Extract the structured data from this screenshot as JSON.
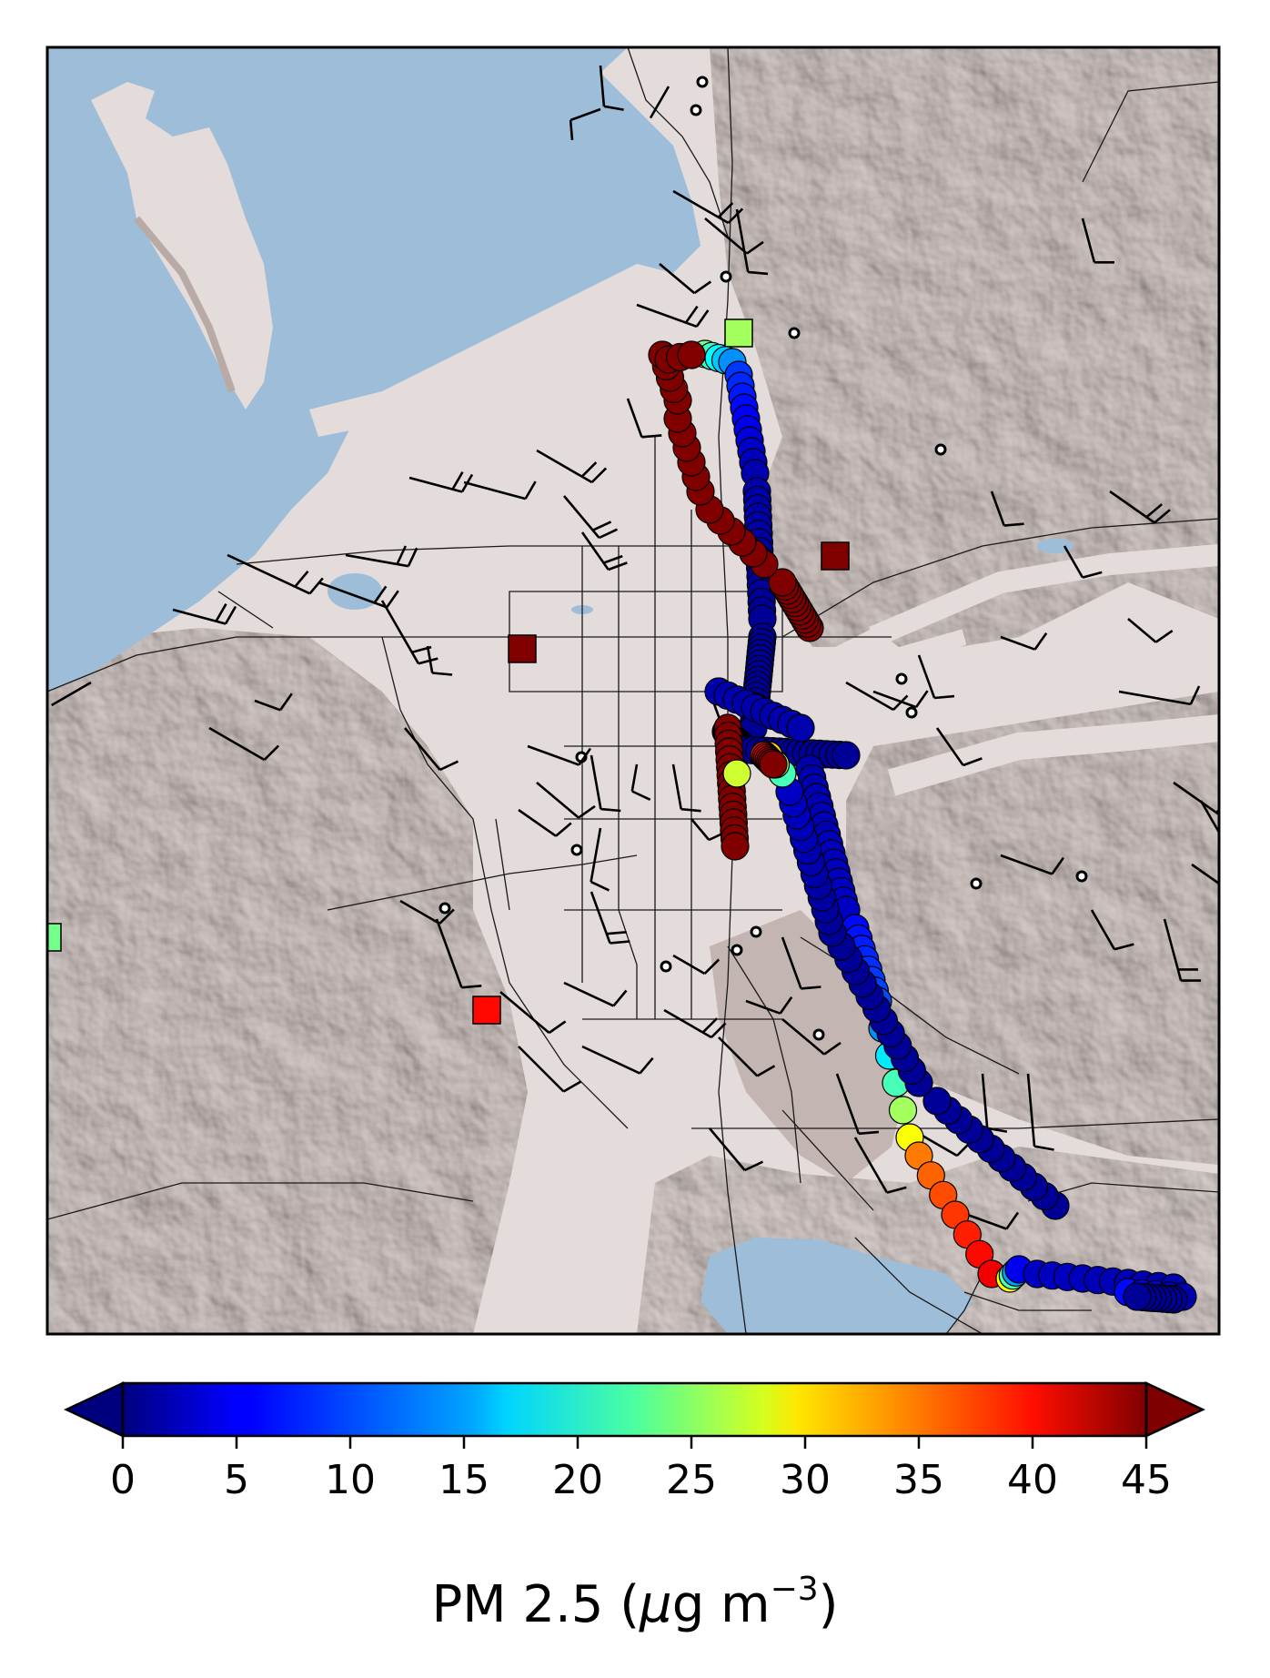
{
  "figure": {
    "colorbar": {
      "label_prefix": "PM 2.5 (",
      "label_mu": "μ",
      "label_unit": "g m",
      "label_exp": "−3",
      "label_suffix": ")",
      "ticks": [
        "0",
        "5",
        "10",
        "15",
        "20",
        "25",
        "30",
        "35",
        "40",
        "45"
      ],
      "min": 0,
      "max": 45,
      "extend": "both",
      "colormap": "jet"
    }
  },
  "colors": {
    "water": "#9dbdd9",
    "land": "#e3dcdb",
    "terrain": "#b9aaa6",
    "roads": "#1a1a1a",
    "frame": "#000000"
  },
  "chart_data": {
    "type": "scatter",
    "description_layers": [
      "mobile transect PM2.5 points",
      "fixed site PM2.5 squares",
      "wind barbs",
      "calm wind circles"
    ],
    "transect_segments": [
      {
        "pm25_start": 22,
        "pm25_end": 12,
        "n": 5
      },
      {
        "pm25_start": 8,
        "pm25_end": 2,
        "n": 10
      },
      {
        "pm25_start": 2,
        "pm25_end": 1,
        "n": 16
      },
      {
        "pm25_start": 1,
        "pm25_end": 1,
        "n": 18
      },
      {
        "pm25_start": 1,
        "pm25_end": 1,
        "n": 25
      },
      {
        "pm25_start": 1,
        "pm25_end": 1,
        "n": 16
      },
      {
        "pm25_start": 2,
        "pm25_end": 3,
        "n": 16
      },
      {
        "pm25_start": 6,
        "pm25_end": 9,
        "n": 8
      },
      {
        "pm25_start": 12,
        "pm25_end": 28,
        "n": 5
      },
      {
        "pm25_start": 34,
        "pm25_end": 40,
        "n": 7
      },
      {
        "pm25_start": 28,
        "pm25_end": 5,
        "n": 4
      },
      {
        "pm25_start": 3,
        "pm25_end": 2,
        "n": 10
      },
      {
        "pm25_start": 6,
        "pm25_end": 2,
        "n": 5
      },
      {
        "pm25_start": 1,
        "pm25_end": 1,
        "n": 8
      },
      {
        "pm25_start": 1,
        "pm25_end": 1,
        "n": 12
      },
      {
        "pm25_start": 1,
        "pm25_end": 1,
        "n": 12
      },
      {
        "pm25_start": 1,
        "pm25_end": 3,
        "n": 13
      },
      {
        "pm25_start": 20,
        "pm25_end": 30,
        "n": 3
      },
      {
        "pm25_start": 38,
        "pm25_end": 45,
        "n": 7
      },
      {
        "pm25_start": 45,
        "pm25_end": 45,
        "n": 16
      },
      {
        "pm25_start": 2,
        "pm25_end": 2,
        "n": 10
      },
      {
        "pm25_start": 26,
        "pm25_end": 26,
        "n": 1
      },
      {
        "pm25_start": 45,
        "pm25_end": 45,
        "n": 12
      },
      {
        "pm25_start": 45,
        "pm25_end": 45,
        "n": 6
      },
      {
        "pm25_start": 45,
        "pm25_end": 45,
        "n": 6
      },
      {
        "pm25_start": 45,
        "pm25_end": 45,
        "n": 5
      },
      {
        "pm25_start": 45,
        "pm25_end": 45,
        "n": 3
      }
    ],
    "stations": [
      {
        "pm25": 24
      },
      {
        "pm25": 45
      },
      {
        "pm25": 45
      },
      {
        "pm25": 39
      },
      {
        "pm25": 22
      }
    ]
  }
}
